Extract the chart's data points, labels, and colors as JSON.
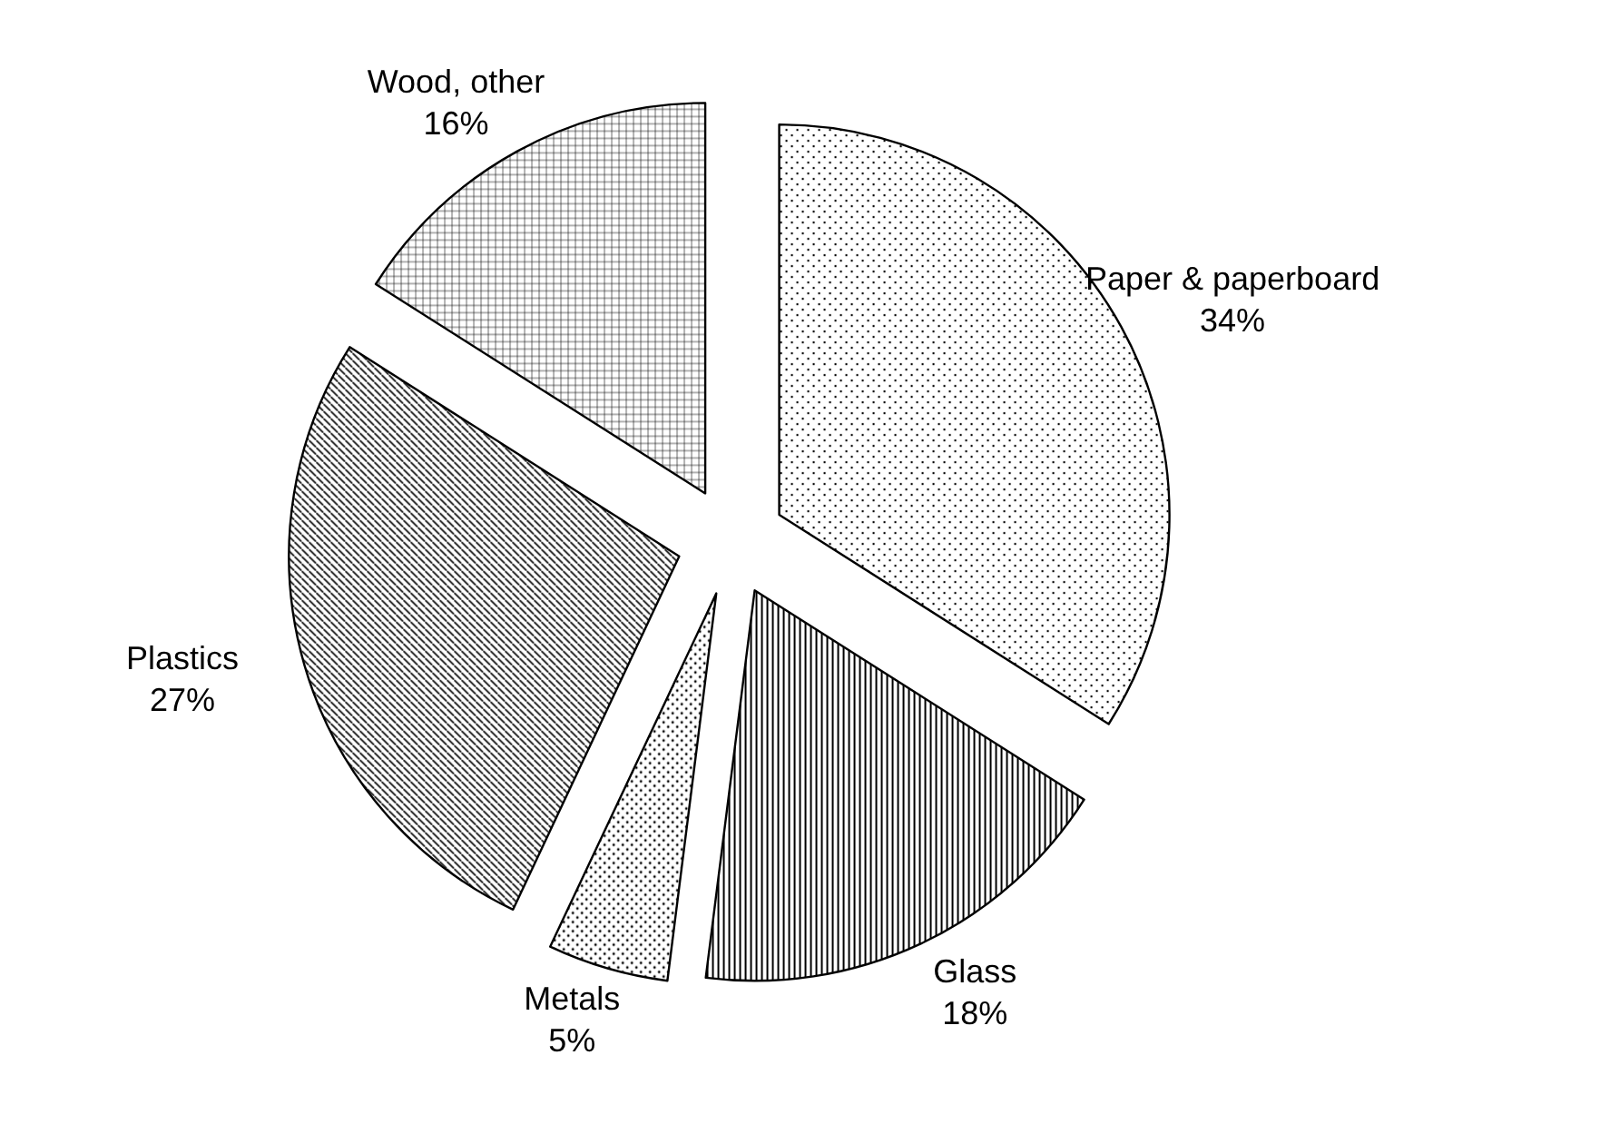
{
  "chart_data": {
    "type": "pie",
    "categories": [
      "Paper & paperboard",
      "Glass",
      "Metals",
      "Plastics",
      "Wood, other"
    ],
    "values": [
      34,
      18,
      5,
      27,
      16
    ],
    "colors": [
      "#000000",
      "#000000",
      "#000000",
      "#000000",
      "#000000"
    ],
    "value_labels": [
      "34%",
      "18%",
      "5%",
      "27%",
      "16%"
    ]
  }
}
